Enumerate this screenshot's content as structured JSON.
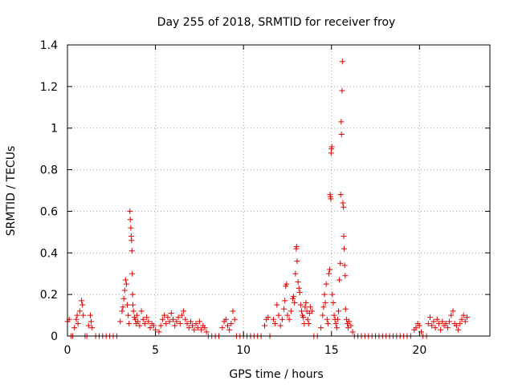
{
  "chart_data": {
    "type": "scatter",
    "title": "Day 255 of 2018, SRMTID for receiver froy",
    "xlabel": "GPS time / hours",
    "ylabel": "SRMTID / TECUs",
    "xlim": [
      0,
      24
    ],
    "ylim": [
      0,
      1.4
    ],
    "x_ticks": [
      0,
      5,
      10,
      15,
      20
    ],
    "x_tick_labels": [
      "0",
      "5",
      "10",
      "15",
      "20"
    ],
    "y_ticks": [
      0,
      0.2,
      0.4,
      0.6,
      0.8,
      1.0,
      1.2,
      1.4
    ],
    "y_tick_labels": [
      "0",
      "0.2",
      "0.4",
      "0.6",
      "0.8",
      "1",
      "1.2",
      "1.4"
    ],
    "grid": true,
    "marker": "+",
    "color": "#e00000",
    "series": [
      {
        "name": "SRMTID",
        "points": [
          [
            0.0,
            0.07
          ],
          [
            0.1,
            0.08
          ],
          [
            0.2,
            0.0
          ],
          [
            0.3,
            0.0
          ],
          [
            0.4,
            0.04
          ],
          [
            0.5,
            0.08
          ],
          [
            0.55,
            0.1
          ],
          [
            0.6,
            0.06
          ],
          [
            0.7,
            0.12
          ],
          [
            0.8,
            0.17
          ],
          [
            0.85,
            0.15
          ],
          [
            0.9,
            0.1
          ],
          [
            1.0,
            0.0
          ],
          [
            1.1,
            0.0
          ],
          [
            1.2,
            0.05
          ],
          [
            1.3,
            0.1
          ],
          [
            1.35,
            0.07
          ],
          [
            1.4,
            0.04
          ],
          [
            1.6,
            0.0
          ],
          [
            1.8,
            0.0
          ],
          [
            2.0,
            0.0
          ],
          [
            2.2,
            0.0
          ],
          [
            2.4,
            0.0
          ],
          [
            2.6,
            0.0
          ],
          [
            2.8,
            0.0
          ],
          [
            3.0,
            0.07
          ],
          [
            3.1,
            0.12
          ],
          [
            3.15,
            0.14
          ],
          [
            3.2,
            0.18
          ],
          [
            3.25,
            0.22
          ],
          [
            3.3,
            0.27
          ],
          [
            3.35,
            0.25
          ],
          [
            3.4,
            0.15
          ],
          [
            3.45,
            0.1
          ],
          [
            3.5,
            0.06
          ],
          [
            3.55,
            0.6
          ],
          [
            3.57,
            0.56
          ],
          [
            3.6,
            0.52
          ],
          [
            3.62,
            0.48
          ],
          [
            3.64,
            0.46
          ],
          [
            3.66,
            0.41
          ],
          [
            3.68,
            0.3
          ],
          [
            3.7,
            0.2
          ],
          [
            3.72,
            0.15
          ],
          [
            3.75,
            0.12
          ],
          [
            3.8,
            0.09
          ],
          [
            3.85,
            0.08
          ],
          [
            3.9,
            0.06
          ],
          [
            3.95,
            0.1
          ],
          [
            4.0,
            0.07
          ],
          [
            4.1,
            0.05
          ],
          [
            4.2,
            0.12
          ],
          [
            4.3,
            0.08
          ],
          [
            4.4,
            0.06
          ],
          [
            4.5,
            0.09
          ],
          [
            4.6,
            0.07
          ],
          [
            4.7,
            0.04
          ],
          [
            4.8,
            0.06
          ],
          [
            4.9,
            0.05
          ],
          [
            5.0,
            0.03
          ],
          [
            5.2,
            0.02
          ],
          [
            5.3,
            0.05
          ],
          [
            5.4,
            0.08
          ],
          [
            5.5,
            0.1
          ],
          [
            5.6,
            0.06
          ],
          [
            5.7,
            0.09
          ],
          [
            5.8,
            0.07
          ],
          [
            5.9,
            0.11
          ],
          [
            6.0,
            0.08
          ],
          [
            6.1,
            0.05
          ],
          [
            6.2,
            0.07
          ],
          [
            6.3,
            0.09
          ],
          [
            6.4,
            0.06
          ],
          [
            6.5,
            0.1
          ],
          [
            6.6,
            0.12
          ],
          [
            6.7,
            0.08
          ],
          [
            6.8,
            0.06
          ],
          [
            6.9,
            0.04
          ],
          [
            7.0,
            0.07
          ],
          [
            7.1,
            0.05
          ],
          [
            7.2,
            0.03
          ],
          [
            7.3,
            0.06
          ],
          [
            7.4,
            0.04
          ],
          [
            7.5,
            0.07
          ],
          [
            7.6,
            0.03
          ],
          [
            7.7,
            0.05
          ],
          [
            7.8,
            0.04
          ],
          [
            7.9,
            0.02
          ],
          [
            8.0,
            0.0
          ],
          [
            8.2,
            0.0
          ],
          [
            8.4,
            0.0
          ],
          [
            8.6,
            0.0
          ],
          [
            8.8,
            0.04
          ],
          [
            8.9,
            0.07
          ],
          [
            9.0,
            0.08
          ],
          [
            9.1,
            0.05
          ],
          [
            9.2,
            0.03
          ],
          [
            9.3,
            0.06
          ],
          [
            9.4,
            0.12
          ],
          [
            9.5,
            0.08
          ],
          [
            9.6,
            0.0
          ],
          [
            9.8,
            0.0
          ],
          [
            10.0,
            0.0
          ],
          [
            10.2,
            0.0
          ],
          [
            10.4,
            0.0
          ],
          [
            10.6,
            0.0
          ],
          [
            10.8,
            0.0
          ],
          [
            11.0,
            0.0
          ],
          [
            11.2,
            0.05
          ],
          [
            11.3,
            0.08
          ],
          [
            11.4,
            0.09
          ],
          [
            11.5,
            0.0
          ],
          [
            11.7,
            0.08
          ],
          [
            11.8,
            0.06
          ],
          [
            11.9,
            0.15
          ],
          [
            12.0,
            0.1
          ],
          [
            12.1,
            0.05
          ],
          [
            12.2,
            0.08
          ],
          [
            12.3,
            0.13
          ],
          [
            12.35,
            0.17
          ],
          [
            12.4,
            0.24
          ],
          [
            12.45,
            0.25
          ],
          [
            12.5,
            0.1
          ],
          [
            12.6,
            0.08
          ],
          [
            12.7,
            0.12
          ],
          [
            12.8,
            0.18
          ],
          [
            12.85,
            0.19
          ],
          [
            12.9,
            0.16
          ],
          [
            12.95,
            0.3
          ],
          [
            13.0,
            0.42
          ],
          [
            13.02,
            0.43
          ],
          [
            13.05,
            0.36
          ],
          [
            13.1,
            0.26
          ],
          [
            13.15,
            0.23
          ],
          [
            13.2,
            0.21
          ],
          [
            13.25,
            0.15
          ],
          [
            13.3,
            0.12
          ],
          [
            13.35,
            0.1
          ],
          [
            13.4,
            0.09
          ],
          [
            13.45,
            0.06
          ],
          [
            13.5,
            0.14
          ],
          [
            13.55,
            0.16
          ],
          [
            13.6,
            0.12
          ],
          [
            13.65,
            0.08
          ],
          [
            13.7,
            0.06
          ],
          [
            13.75,
            0.11
          ],
          [
            13.8,
            0.14
          ],
          [
            13.9,
            0.12
          ],
          [
            14.0,
            0.0
          ],
          [
            14.2,
            0.0
          ],
          [
            14.4,
            0.04
          ],
          [
            14.5,
            0.1
          ],
          [
            14.55,
            0.14
          ],
          [
            14.6,
            0.2
          ],
          [
            14.65,
            0.16
          ],
          [
            14.7,
            0.25
          ],
          [
            14.75,
            0.08
          ],
          [
            14.8,
            0.06
          ],
          [
            14.85,
            0.3
          ],
          [
            14.9,
            0.32
          ],
          [
            14.92,
            0.68
          ],
          [
            14.94,
            0.67
          ],
          [
            14.96,
            0.66
          ],
          [
            14.98,
            0.88
          ],
          [
            15.0,
            0.9
          ],
          [
            15.02,
            0.91
          ],
          [
            15.05,
            0.2
          ],
          [
            15.1,
            0.16
          ],
          [
            15.15,
            0.1
          ],
          [
            15.2,
            0.08
          ],
          [
            15.25,
            0.06
          ],
          [
            15.3,
            0.04
          ],
          [
            15.35,
            0.08
          ],
          [
            15.4,
            0.12
          ],
          [
            15.45,
            0.27
          ],
          [
            15.5,
            0.35
          ],
          [
            15.52,
            0.68
          ],
          [
            15.55,
            1.03
          ],
          [
            15.57,
            0.97
          ],
          [
            15.6,
            1.18
          ],
          [
            15.62,
            1.32
          ],
          [
            15.65,
            0.64
          ],
          [
            15.68,
            0.62
          ],
          [
            15.7,
            0.48
          ],
          [
            15.72,
            0.42
          ],
          [
            15.75,
            0.34
          ],
          [
            15.78,
            0.29
          ],
          [
            15.8,
            0.13
          ],
          [
            15.85,
            0.08
          ],
          [
            15.9,
            0.06
          ],
          [
            15.95,
            0.04
          ],
          [
            16.0,
            0.07
          ],
          [
            16.1,
            0.05
          ],
          [
            16.2,
            0.02
          ],
          [
            16.3,
            0.0
          ],
          [
            16.5,
            0.0
          ],
          [
            16.7,
            0.0
          ],
          [
            16.9,
            0.0
          ],
          [
            17.1,
            0.0
          ],
          [
            17.3,
            0.0
          ],
          [
            17.5,
            0.0
          ],
          [
            17.7,
            0.0
          ],
          [
            17.9,
            0.0
          ],
          [
            18.1,
            0.0
          ],
          [
            18.3,
            0.0
          ],
          [
            18.5,
            0.0
          ],
          [
            18.7,
            0.0
          ],
          [
            18.9,
            0.0
          ],
          [
            19.1,
            0.0
          ],
          [
            19.3,
            0.0
          ],
          [
            19.5,
            0.0
          ],
          [
            19.7,
            0.03
          ],
          [
            19.8,
            0.04
          ],
          [
            19.9,
            0.06
          ],
          [
            20.0,
            0.05
          ],
          [
            20.1,
            0.02
          ],
          [
            20.2,
            0.0
          ],
          [
            20.4,
            0.0
          ],
          [
            20.5,
            0.06
          ],
          [
            20.6,
            0.09
          ],
          [
            20.7,
            0.05
          ],
          [
            20.8,
            0.07
          ],
          [
            20.9,
            0.04
          ],
          [
            21.0,
            0.08
          ],
          [
            21.1,
            0.06
          ],
          [
            21.2,
            0.03
          ],
          [
            21.3,
            0.07
          ],
          [
            21.4,
            0.05
          ],
          [
            21.5,
            0.06
          ],
          [
            21.6,
            0.04
          ],
          [
            21.7,
            0.07
          ],
          [
            21.8,
            0.1
          ],
          [
            21.9,
            0.12
          ],
          [
            22.0,
            0.06
          ],
          [
            22.1,
            0.05
          ],
          [
            22.2,
            0.03
          ],
          [
            22.3,
            0.06
          ],
          [
            22.4,
            0.08
          ],
          [
            22.5,
            0.1
          ],
          [
            22.6,
            0.07
          ],
          [
            22.7,
            0.09
          ]
        ]
      }
    ]
  }
}
